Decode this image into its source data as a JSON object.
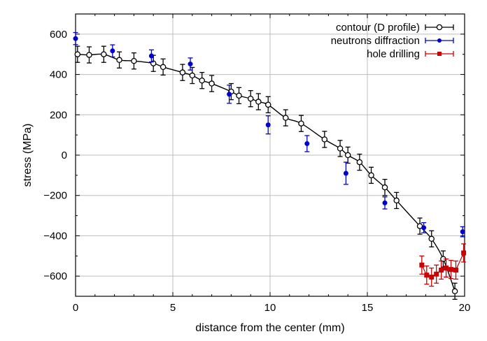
{
  "chart_data": {
    "type": "scatter",
    "title": "",
    "xlabel": "distance from the center (mm)",
    "ylabel": "stress (MPa)",
    "xlim": [
      0,
      20
    ],
    "ylim": [
      -700,
      700
    ],
    "x_ticks": [
      0,
      5,
      10,
      15,
      20
    ],
    "y_ticks": [
      -600,
      -400,
      -200,
      0,
      200,
      400,
      600
    ],
    "grid": true,
    "legend_position": "top-right",
    "series": [
      {
        "name": "contour (D profile)",
        "color": "#000000",
        "marker": "open-circle",
        "line": "smooth",
        "x": [
          0.1,
          0.7,
          1.45,
          2.25,
          3.0,
          4.0,
          4.5,
          5.5,
          6.0,
          6.5,
          7.0,
          8.0,
          8.4,
          9.0,
          9.4,
          9.9,
          10.8,
          11.6,
          12.8,
          13.6,
          14.0,
          14.6,
          15.2,
          15.9,
          16.5,
          17.7,
          18.3,
          18.9,
          19.5
        ],
        "y": [
          500,
          497,
          500,
          472,
          467,
          455,
          437,
          410,
          395,
          370,
          355,
          315,
          295,
          280,
          265,
          250,
          185,
          157,
          78,
          33,
          0,
          -35,
          -100,
          -160,
          -225,
          -352,
          -415,
          -515,
          -675
        ],
        "err": [
          40,
          40,
          40,
          40,
          40,
          40,
          40,
          40,
          40,
          40,
          40,
          40,
          40,
          40,
          40,
          40,
          40,
          40,
          40,
          40,
          40,
          40,
          40,
          40,
          40,
          40,
          40,
          40,
          40
        ]
      },
      {
        "name": "neutrons diffraction",
        "color": "#0000cc",
        "marker": "filled-circle",
        "line": "none",
        "x": [
          0.0,
          1.9,
          3.9,
          5.9,
          7.9,
          9.9,
          11.9,
          13.9,
          15.9,
          17.9,
          19.9
        ],
        "y": [
          578,
          517,
          492,
          452,
          302,
          150,
          57,
          -90,
          -237,
          -360,
          -380
        ],
        "err": [
          30,
          30,
          30,
          30,
          45,
          45,
          40,
          55,
          30,
          25,
          25
        ]
      },
      {
        "name": "hole drilling",
        "color": "#cc0000",
        "marker": "filled-square",
        "line": "solid",
        "x": [
          17.8,
          18.05,
          18.3,
          18.55,
          18.8,
          19.05,
          19.3,
          19.55,
          19.95
        ],
        "y": [
          -545,
          -595,
          -605,
          -590,
          -570,
          -560,
          -567,
          -570,
          -485
        ],
        "err": [
          45,
          45,
          45,
          45,
          45,
          45,
          45,
          45,
          45
        ]
      }
    ]
  }
}
